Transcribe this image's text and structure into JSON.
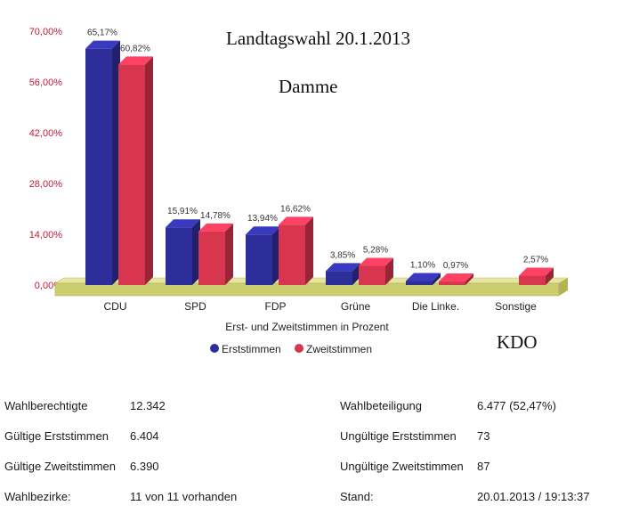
{
  "chart_data": {
    "type": "bar",
    "title": "Landtagswahl 20.1.2013",
    "subtitle": "Damme",
    "annotation": "KDO",
    "xlabel": "Erst- und Zweitstimmen in Prozent",
    "ylabel": "",
    "ylim": [
      0,
      70
    ],
    "yticks": [
      "0,00%",
      "14,00%",
      "28,00%",
      "42,00%",
      "56,00%",
      "70,00%"
    ],
    "ytick_values": [
      0,
      14,
      28,
      42,
      56,
      70
    ],
    "categories": [
      "CDU",
      "SPD",
      "FDP",
      "Grüne",
      "Die Linke.",
      "Sonstige"
    ],
    "legend_position": "bottom",
    "grid": false,
    "series": [
      {
        "name": "Erststimmen",
        "color": "#2e2e9a",
        "values": [
          65.17,
          15.91,
          13.94,
          3.85,
          1.1,
          null
        ],
        "labels": [
          "65,17%",
          "15,91%",
          "13,94%",
          "3,85%",
          "1,10%",
          ""
        ]
      },
      {
        "name": "Zweitstimmen",
        "color": "#d8354f",
        "values": [
          60.82,
          14.78,
          16.62,
          5.28,
          0.97,
          2.57
        ],
        "labels": [
          "60,82%",
          "14,78%",
          "16,62%",
          "5,28%",
          "0,97%",
          "2,57%"
        ]
      }
    ]
  },
  "stats": [
    {
      "label": "Wahlberechtigte",
      "value": "12.342",
      "label2": "Wahlbeteiligung",
      "value2": "6.477 (52,47%)"
    },
    {
      "label": "Gültige Erststimmen",
      "value": "6.404",
      "label2": "Ungültige Erststimmen",
      "value2": "73"
    },
    {
      "label": "Gültige Zweitstimmen",
      "value": "6.390",
      "label2": "Ungültige Zweitstimmen",
      "value2": "87"
    },
    {
      "label": "Wahlbezirke:",
      "value": "11 von 11 vorhanden",
      "label2": "Stand:",
      "value2": "20.01.2013 / 19:13:37"
    }
  ]
}
